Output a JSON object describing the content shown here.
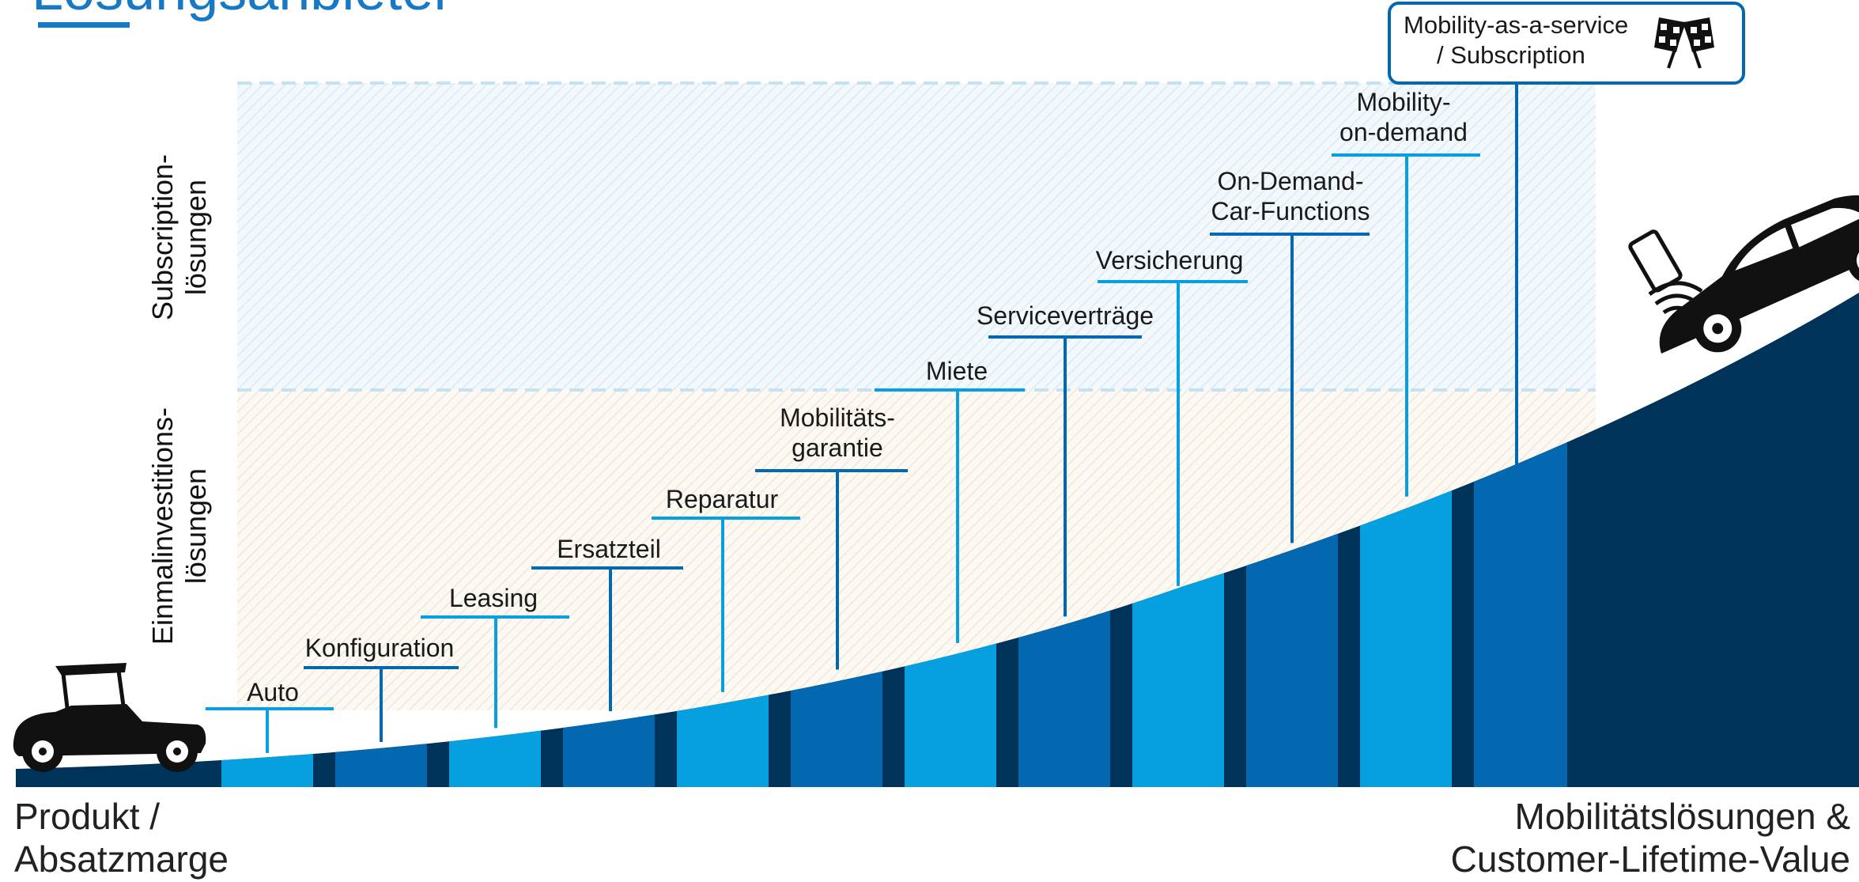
{
  "title": "Lösungsanbieter",
  "zones": {
    "subscription": {
      "line1": "Subscription-",
      "line2": "lösungen"
    },
    "einmal": {
      "line1": "Einmalinvestitions-",
      "line2": "lösungen"
    }
  },
  "steps": [
    {
      "lines": [
        "Auto"
      ]
    },
    {
      "lines": [
        "Konfiguration"
      ]
    },
    {
      "lines": [
        "Leasing"
      ]
    },
    {
      "lines": [
        "Ersatzteil"
      ]
    },
    {
      "lines": [
        "Reparatur"
      ]
    },
    {
      "lines": [
        "Mobilitäts-",
        "garantie"
      ]
    },
    {
      "lines": [
        "Miete"
      ]
    },
    {
      "lines": [
        "Serviceverträge"
      ]
    },
    {
      "lines": [
        "Versicherung"
      ]
    },
    {
      "lines": [
        "On-Demand-",
        "Car-Functions"
      ]
    },
    {
      "lines": [
        "Mobility-",
        "on-demand"
      ]
    }
  ],
  "top_box": {
    "line1": "Mobility-as-a-service",
    "line2": "/ Subscription"
  },
  "axis": {
    "left_line1": "Produkt /",
    "left_line2": "Absatzmarge",
    "right_line1": "Mobilitätslösungen &",
    "right_line2": "Customer-Lifetime-Value"
  },
  "icons": {
    "left_car": "vintage-car-icon",
    "right_car": "connected-car-icon",
    "flags": "checkered-flags-icon",
    "phone": "smartphone-icon"
  },
  "colors": {
    "dark": "#003359",
    "mid": "#0368b0",
    "light": "#06a0e0",
    "accent": "#1779c4"
  }
}
